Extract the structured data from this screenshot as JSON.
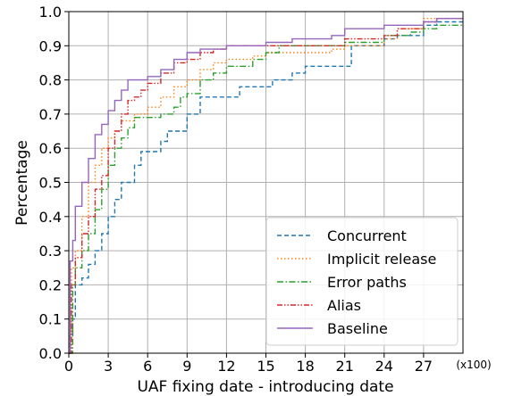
{
  "chart_data": {
    "type": "line",
    "title": "",
    "xlabel": "UAF fixing date - introducing date",
    "ylabel": "Percentage",
    "x_unit": "(x100)",
    "xlim": [
      0,
      30
    ],
    "ylim": [
      0,
      1.0
    ],
    "xticks": [
      "0",
      "3",
      "6",
      "9",
      "12",
      "15",
      "18",
      "21",
      "24",
      "27"
    ],
    "yticks": [
      "0.0",
      "0.1",
      "0.2",
      "0.3",
      "0.4",
      "0.5",
      "0.6",
      "0.7",
      "0.8",
      "0.9",
      "1.0"
    ],
    "grid": true,
    "legend_position": "bottom-right",
    "series": [
      {
        "name": "Concurrent",
        "color": "#1f77b4",
        "dash": "dashed",
        "points": [
          [
            0,
            0
          ],
          [
            0.1,
            0.05
          ],
          [
            0.3,
            0.1
          ],
          [
            0.5,
            0.2
          ],
          [
            1,
            0.22
          ],
          [
            1.5,
            0.26
          ],
          [
            2,
            0.3
          ],
          [
            2.5,
            0.35
          ],
          [
            3,
            0.4
          ],
          [
            3.5,
            0.45
          ],
          [
            4,
            0.5
          ],
          [
            5,
            0.55
          ],
          [
            5.5,
            0.59
          ],
          [
            7,
            0.62
          ],
          [
            7.5,
            0.65
          ],
          [
            9,
            0.7
          ],
          [
            10,
            0.75
          ],
          [
            12,
            0.75
          ],
          [
            13,
            0.78
          ],
          [
            15,
            0.78
          ],
          [
            15.5,
            0.8
          ],
          [
            17,
            0.82
          ],
          [
            18,
            0.84
          ],
          [
            21,
            0.84
          ],
          [
            21.5,
            0.9
          ],
          [
            24,
            0.92
          ],
          [
            25,
            0.93
          ],
          [
            27,
            0.96
          ],
          [
            28,
            0.97
          ],
          [
            30,
            0.97
          ]
        ]
      },
      {
        "name": "Implicit release",
        "color": "#ff7f0e",
        "dash": "dotted",
        "points": [
          [
            0,
            0
          ],
          [
            0.2,
            0.25
          ],
          [
            0.5,
            0.3
          ],
          [
            1,
            0.4
          ],
          [
            1.5,
            0.5
          ],
          [
            2,
            0.55
          ],
          [
            2.5,
            0.6
          ],
          [
            3,
            0.63
          ],
          [
            3.5,
            0.65
          ],
          [
            4,
            0.68
          ],
          [
            5,
            0.7
          ],
          [
            6,
            0.72
          ],
          [
            7,
            0.75
          ],
          [
            8,
            0.78
          ],
          [
            9,
            0.8
          ],
          [
            10,
            0.83
          ],
          [
            11,
            0.85
          ],
          [
            12,
            0.86
          ],
          [
            14,
            0.87
          ],
          [
            15,
            0.88
          ],
          [
            18,
            0.88
          ],
          [
            20,
            0.89
          ],
          [
            21,
            0.9
          ],
          [
            24,
            0.92
          ],
          [
            25,
            0.95
          ],
          [
            27,
            0.98
          ],
          [
            28,
            0.98
          ],
          [
            30,
            0.98
          ]
        ]
      },
      {
        "name": "Error paths",
        "color": "#2ca02c",
        "dash": "dashdot",
        "points": [
          [
            0,
            0
          ],
          [
            0.3,
            0.2
          ],
          [
            0.5,
            0.25
          ],
          [
            1,
            0.3
          ],
          [
            1.5,
            0.35
          ],
          [
            2,
            0.42
          ],
          [
            2.5,
            0.48
          ],
          [
            3,
            0.55
          ],
          [
            3.5,
            0.6
          ],
          [
            4,
            0.63
          ],
          [
            4.5,
            0.66
          ],
          [
            5,
            0.69
          ],
          [
            7,
            0.7
          ],
          [
            8,
            0.72
          ],
          [
            8.5,
            0.75
          ],
          [
            9,
            0.76
          ],
          [
            10,
            0.8
          ],
          [
            11,
            0.82
          ],
          [
            12,
            0.84
          ],
          [
            14,
            0.86
          ],
          [
            15,
            0.88
          ],
          [
            16,
            0.9
          ],
          [
            18,
            0.9
          ],
          [
            20,
            0.9
          ],
          [
            21,
            0.91
          ],
          [
            24,
            0.93
          ],
          [
            26,
            0.94
          ],
          [
            27,
            0.95
          ],
          [
            28,
            0.96
          ],
          [
            30,
            0.96
          ]
        ]
      },
      {
        "name": "Alias",
        "color": "#d62728",
        "dash": "dashdotdot",
        "points": [
          [
            0,
            0
          ],
          [
            0.2,
            0.2
          ],
          [
            0.5,
            0.28
          ],
          [
            1,
            0.35
          ],
          [
            1.5,
            0.4
          ],
          [
            2,
            0.48
          ],
          [
            2.5,
            0.52
          ],
          [
            3,
            0.6
          ],
          [
            3.5,
            0.65
          ],
          [
            4,
            0.7
          ],
          [
            4.5,
            0.74
          ],
          [
            5,
            0.75
          ],
          [
            5.5,
            0.77
          ],
          [
            6,
            0.79
          ],
          [
            7,
            0.82
          ],
          [
            8,
            0.85
          ],
          [
            9,
            0.86
          ],
          [
            10,
            0.88
          ],
          [
            11,
            0.89
          ],
          [
            12,
            0.9
          ],
          [
            15,
            0.9
          ],
          [
            18,
            0.9
          ],
          [
            20,
            0.9
          ],
          [
            21,
            0.92
          ],
          [
            24,
            0.93
          ],
          [
            25,
            0.95
          ],
          [
            27,
            0.97
          ],
          [
            28,
            0.98
          ],
          [
            30,
            0.98
          ]
        ]
      },
      {
        "name": "Baseline",
        "color": "#9467bd",
        "dash": "solid",
        "points": [
          [
            0,
            0
          ],
          [
            0.1,
            0.27
          ],
          [
            0.3,
            0.33
          ],
          [
            0.5,
            0.43
          ],
          [
            1,
            0.5
          ],
          [
            1.5,
            0.57
          ],
          [
            2,
            0.64
          ],
          [
            2.5,
            0.67
          ],
          [
            3,
            0.71
          ],
          [
            3.5,
            0.74
          ],
          [
            4,
            0.77
          ],
          [
            4.5,
            0.8
          ],
          [
            5,
            0.8
          ],
          [
            6,
            0.81
          ],
          [
            7,
            0.83
          ],
          [
            8,
            0.86
          ],
          [
            9,
            0.88
          ],
          [
            10,
            0.89
          ],
          [
            12,
            0.9
          ],
          [
            14,
            0.9
          ],
          [
            15,
            0.91
          ],
          [
            17,
            0.92
          ],
          [
            20,
            0.93
          ],
          [
            21,
            0.95
          ],
          [
            24,
            0.96
          ],
          [
            27,
            0.97
          ],
          [
            28,
            0.98
          ],
          [
            30,
            0.98
          ]
        ]
      }
    ]
  }
}
